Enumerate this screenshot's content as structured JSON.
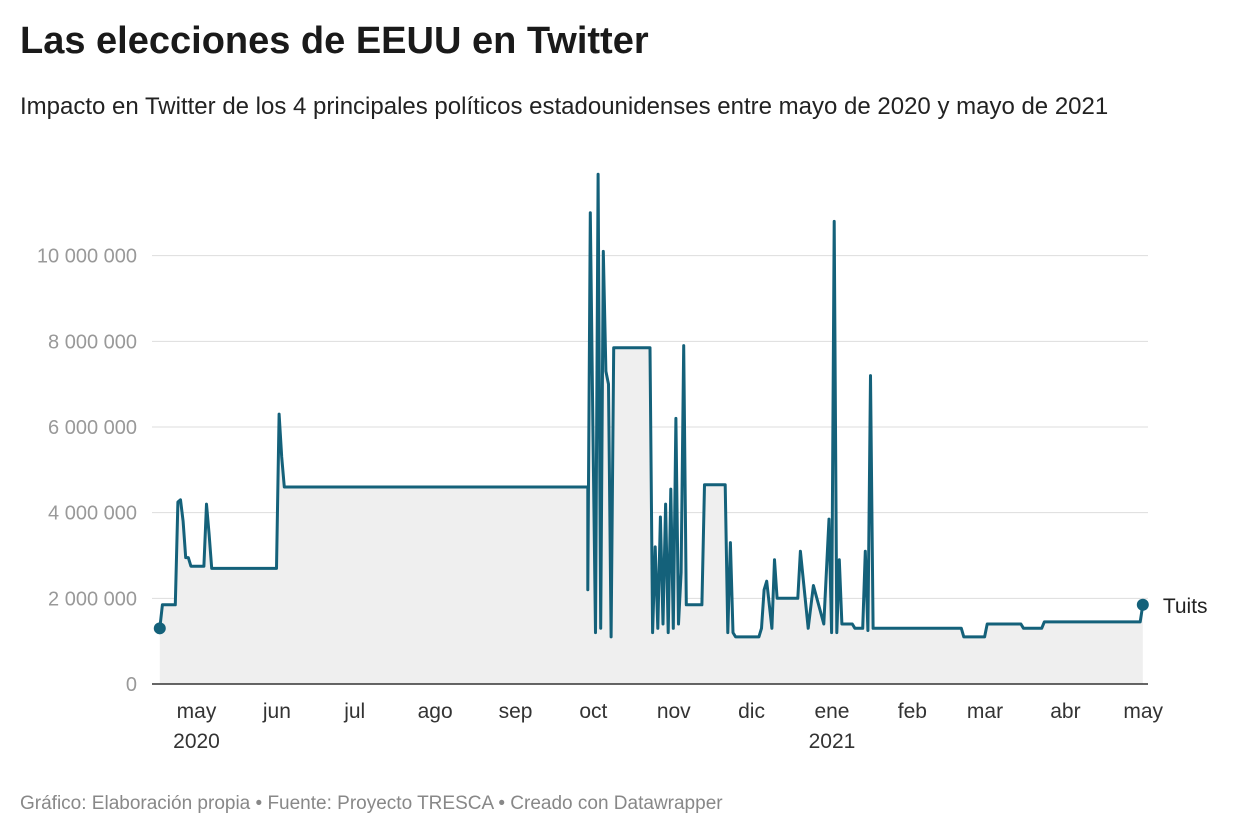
{
  "header": {
    "title": "Las elecciones de EEUU en Twitter",
    "subtitle": "Impacto en Twitter de los 4 principales políticos estadounidenses entre mayo de 2020 y mayo de 2021"
  },
  "footer": {
    "source_line": "Gráfico: Elaboración propia • Fuente: Proyecto TRESCA • Creado con Datawrapper"
  },
  "chart_data": {
    "type": "line",
    "series": [
      {
        "name": "Tuits",
        "color": "#14617a",
        "points": [
          [
            "2020-04-18",
            1300000
          ],
          [
            "2020-04-19",
            1850000
          ],
          [
            "2020-04-24",
            1850000
          ],
          [
            "2020-04-25",
            4250000
          ],
          [
            "2020-04-26",
            4300000
          ],
          [
            "2020-04-27",
            3800000
          ],
          [
            "2020-04-28",
            2950000
          ],
          [
            "2020-04-29",
            2950000
          ],
          [
            "2020-04-30",
            2750000
          ],
          [
            "2020-05-05",
            2750000
          ],
          [
            "2020-05-06",
            4200000
          ],
          [
            "2020-05-07",
            3500000
          ],
          [
            "2020-05-08",
            2700000
          ],
          [
            "2020-06-02",
            2700000
          ],
          [
            "2020-06-03",
            6300000
          ],
          [
            "2020-06-04",
            5300000
          ],
          [
            "2020-06-05",
            4600000
          ],
          [
            "2020-09-30",
            4600000
          ],
          [
            "2020-09-30",
            2200000
          ],
          [
            "2020-10-01",
            11000000
          ],
          [
            "2020-10-02",
            6000000
          ],
          [
            "2020-10-03",
            1200000
          ],
          [
            "2020-10-04",
            11900000
          ],
          [
            "2020-10-05",
            1300000
          ],
          [
            "2020-10-06",
            10100000
          ],
          [
            "2020-10-07",
            7300000
          ],
          [
            "2020-10-08",
            7000000
          ],
          [
            "2020-10-09",
            1100000
          ],
          [
            "2020-10-10",
            7850000
          ],
          [
            "2020-10-24",
            7850000
          ],
          [
            "2020-10-25",
            1200000
          ],
          [
            "2020-10-26",
            3200000
          ],
          [
            "2020-10-27",
            1300000
          ],
          [
            "2020-10-28",
            3900000
          ],
          [
            "2020-10-29",
            1400000
          ],
          [
            "2020-10-30",
            4200000
          ],
          [
            "2020-10-31",
            1200000
          ],
          [
            "2020-11-01",
            4550000
          ],
          [
            "2020-11-02",
            1300000
          ],
          [
            "2020-11-03",
            6200000
          ],
          [
            "2020-11-04",
            1400000
          ],
          [
            "2020-11-05",
            2600000
          ],
          [
            "2020-11-06",
            7900000
          ],
          [
            "2020-11-07",
            1850000
          ],
          [
            "2020-11-13",
            1850000
          ],
          [
            "2020-11-14",
            4650000
          ],
          [
            "2020-11-22",
            4650000
          ],
          [
            "2020-11-23",
            1200000
          ],
          [
            "2020-11-24",
            3300000
          ],
          [
            "2020-11-25",
            1200000
          ],
          [
            "2020-11-26",
            1100000
          ],
          [
            "2020-12-05",
            1100000
          ],
          [
            "2020-12-06",
            1300000
          ],
          [
            "2020-12-07",
            2200000
          ],
          [
            "2020-12-08",
            2400000
          ],
          [
            "2020-12-10",
            1300000
          ],
          [
            "2020-12-11",
            2900000
          ],
          [
            "2020-12-12",
            2000000
          ],
          [
            "2020-12-20",
            2000000
          ],
          [
            "2020-12-21",
            3100000
          ],
          [
            "2020-12-24",
            1300000
          ],
          [
            "2020-12-26",
            2300000
          ],
          [
            "2020-12-30",
            1400000
          ],
          [
            "2021-01-01",
            3850000
          ],
          [
            "2021-01-02",
            1200000
          ],
          [
            "2021-01-03",
            10800000
          ],
          [
            "2021-01-04",
            1200000
          ],
          [
            "2021-01-05",
            2900000
          ],
          [
            "2021-01-06",
            1400000
          ],
          [
            "2021-01-10",
            1400000
          ],
          [
            "2021-01-11",
            1300000
          ],
          [
            "2021-01-14",
            1300000
          ],
          [
            "2021-01-15",
            3100000
          ],
          [
            "2021-01-16",
            1250000
          ],
          [
            "2021-01-17",
            7200000
          ],
          [
            "2021-01-18",
            1300000
          ],
          [
            "2021-02-21",
            1300000
          ],
          [
            "2021-02-22",
            1100000
          ],
          [
            "2021-03-02",
            1100000
          ],
          [
            "2021-03-03",
            1400000
          ],
          [
            "2021-03-16",
            1400000
          ],
          [
            "2021-03-17",
            1300000
          ],
          [
            "2021-03-24",
            1300000
          ],
          [
            "2021-03-25",
            1450000
          ],
          [
            "2021-05-01",
            1450000
          ],
          [
            "2021-05-02",
            1850000
          ]
        ]
      }
    ],
    "end_label": "Tuits",
    "ylim": [
      0,
      12000000
    ],
    "y_ticks": [
      0,
      2000000,
      4000000,
      6000000,
      8000000,
      10000000
    ],
    "y_tick_labels": [
      "0",
      "2 000 000",
      "4 000 000",
      "6 000 000",
      "8 000 000",
      "10 000 000"
    ],
    "x_range": [
      "2020-04-15",
      "2021-05-04"
    ],
    "x_ticks": [
      {
        "date": "2020-05-01",
        "label": "may",
        "year": "2020"
      },
      {
        "date": "2020-06-01",
        "label": "jun"
      },
      {
        "date": "2020-07-01",
        "label": "jul"
      },
      {
        "date": "2020-08-01",
        "label": "ago"
      },
      {
        "date": "2020-09-01",
        "label": "sep"
      },
      {
        "date": "2020-10-01",
        "label": "oct"
      },
      {
        "date": "2020-11-01",
        "label": "nov"
      },
      {
        "date": "2020-12-01",
        "label": "dic"
      },
      {
        "date": "2021-01-01",
        "label": "ene",
        "year": "2021"
      },
      {
        "date": "2021-02-01",
        "label": "feb"
      },
      {
        "date": "2021-03-01",
        "label": "mar"
      },
      {
        "date": "2021-04-01",
        "label": "abr"
      },
      {
        "date": "2021-05-01",
        "label": "may"
      }
    ],
    "grid": true,
    "area_fill": "#efefef",
    "line_style": "step"
  }
}
